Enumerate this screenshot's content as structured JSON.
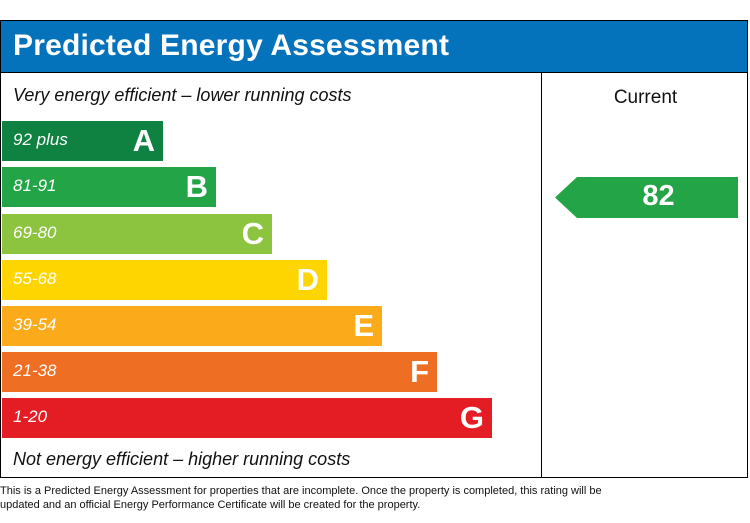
{
  "chart_data": {
    "type": "bar",
    "title": "Predicted Energy Assessment",
    "top_caption": "Very energy efficient – lower running costs",
    "bottom_caption": "Not energy efficient – higher running costs",
    "current_heading": "Current",
    "current_value": "82",
    "current_band": "B",
    "bands": [
      {
        "range": "92 plus",
        "letter": "A",
        "color": "#0f8140"
      },
      {
        "range": "81-91",
        "letter": "B",
        "color": "#23a447"
      },
      {
        "range": "69-80",
        "letter": "C",
        "color": "#8cc43f"
      },
      {
        "range": "55-68",
        "letter": "D",
        "color": "#ffd501"
      },
      {
        "range": "39-54",
        "letter": "E",
        "color": "#fbaa19"
      },
      {
        "range": "21-38",
        "letter": "F",
        "color": "#ee6e23"
      },
      {
        "range": "1-20",
        "letter": "G",
        "color": "#e31d23"
      }
    ]
  },
  "footnote": "This is a Predicted Energy Assessment for properties that are incomplete. Once the property is completed, this rating will be updated and an official Energy Performance Certificate will be created for the property.",
  "colors": {
    "header": "#0573bb",
    "current_arrow": "#23a447"
  }
}
